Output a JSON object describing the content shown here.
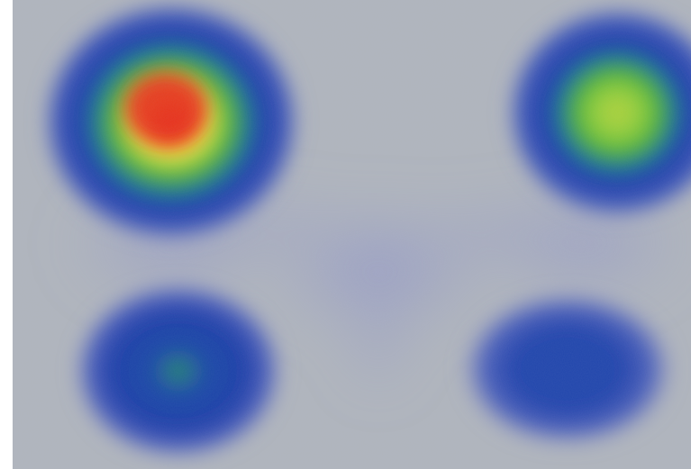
{
  "image": {
    "subject": "",
    "background_color": "#b0b5bc",
    "frame_color": "#ffffff",
    "colormap": [
      "#1f3fa8",
      "#2c8a3e",
      "#8ccf3a",
      "#f2e63a",
      "#f07a1e",
      "#e8321e"
    ],
    "spots": [
      {
        "id": "top-left",
        "peak_level": 1.0
      },
      {
        "id": "top-right",
        "peak_level": 0.6
      },
      {
        "id": "bottom-left",
        "peak_level": 0.3
      },
      {
        "id": "bottom-right",
        "peak_level": 0.15
      }
    ]
  }
}
